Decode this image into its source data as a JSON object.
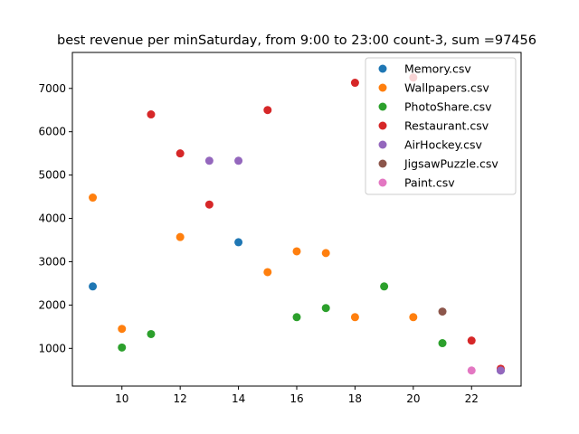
{
  "chart_data": {
    "type": "scatter",
    "title": "best revenue per minSaturday, from 9:00 to 23:00 count-3, sum =97456",
    "xlabel": "",
    "ylabel": "",
    "xlim": [
      8.3,
      23.7
    ],
    "ylim": [
      130,
      7830
    ],
    "xticks": [
      10,
      12,
      14,
      16,
      18,
      20,
      22
    ],
    "yticks": [
      1000,
      2000,
      3000,
      4000,
      5000,
      6000,
      7000
    ],
    "grid": false,
    "legend_position": "top-right",
    "series": [
      {
        "name": "Memory.csv",
        "color": "#1f77b4",
        "points": [
          [
            9,
            2430
          ],
          [
            14,
            3450
          ],
          [
            23,
            490
          ]
        ]
      },
      {
        "name": "Wallpapers.csv",
        "color": "#ff7f0e",
        "points": [
          [
            9,
            4480
          ],
          [
            10,
            1450
          ],
          [
            12,
            3570
          ],
          [
            15,
            2760
          ],
          [
            16,
            3240
          ],
          [
            17,
            3200
          ],
          [
            18,
            1720
          ],
          [
            20,
            1720
          ]
        ]
      },
      {
        "name": "PhotoShare.csv",
        "color": "#2ca02c",
        "points": [
          [
            10,
            1020
          ],
          [
            11,
            1330
          ],
          [
            16,
            1720
          ],
          [
            17,
            1930
          ],
          [
            19,
            2430
          ],
          [
            21,
            1120
          ]
        ]
      },
      {
        "name": "Restaurant.csv",
        "color": "#d62728",
        "points": [
          [
            11,
            6400
          ],
          [
            12,
            5500
          ],
          [
            13,
            4320
          ],
          [
            15,
            6500
          ],
          [
            18,
            7130
          ],
          [
            20,
            7250
          ],
          [
            22,
            1180
          ],
          [
            23,
            530
          ]
        ]
      },
      {
        "name": "AirHockey.csv",
        "color": "#9467bd",
        "points": [
          [
            13,
            5330
          ],
          [
            14,
            5330
          ],
          [
            23,
            490
          ]
        ]
      },
      {
        "name": "JigsawPuzzle.csv",
        "color": "#8c564b",
        "points": [
          [
            21,
            1850
          ]
        ]
      },
      {
        "name": "Paint.csv",
        "color": "#e377c2",
        "points": [
          [
            22,
            490
          ]
        ]
      }
    ]
  }
}
